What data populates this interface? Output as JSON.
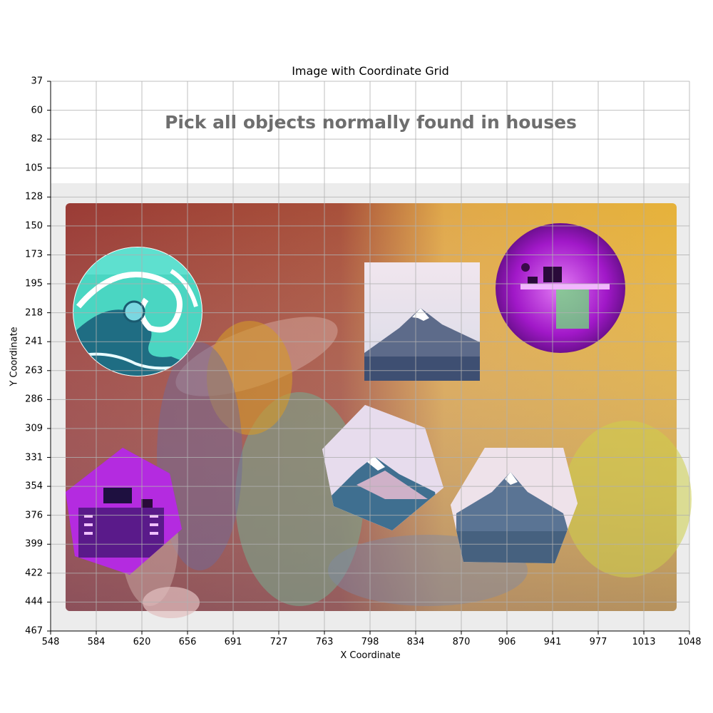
{
  "plot": {
    "title": "Image with Coordinate Grid",
    "x_label": "X Coordinate",
    "y_label": "Y Coordinate",
    "x_ticks": [
      "548",
      "584",
      "620",
      "656",
      "691",
      "727",
      "763",
      "798",
      "834",
      "870",
      "906",
      "941",
      "977",
      "1013",
      "1048"
    ],
    "y_ticks": [
      "37",
      "60",
      "82",
      "105",
      "128",
      "150",
      "173",
      "195",
      "218",
      "241",
      "263",
      "286",
      "309",
      "331",
      "354",
      "376",
      "399",
      "422",
      "444",
      "467"
    ]
  },
  "captcha": {
    "prompt": "Pick all objects normally found in houses",
    "tiles": [
      {
        "id": "wave-circle",
        "icon": "ocean-wave-icon",
        "shape": "circle"
      },
      {
        "id": "mountain-square",
        "icon": "mountain-icon",
        "shape": "square"
      },
      {
        "id": "desk-circle",
        "icon": "desk-icon",
        "shape": "circle"
      },
      {
        "id": "cabinet-hexagon",
        "icon": "cabinet-icon",
        "shape": "hexagon"
      },
      {
        "id": "mountain-hexagon",
        "icon": "mountain-icon",
        "shape": "hexagon"
      },
      {
        "id": "mountain-pentagon",
        "icon": "mountain-icon",
        "shape": "pentagon"
      }
    ]
  },
  "colors": {
    "grid": "#b0b0b0",
    "prompt_text": "#6e6e6e",
    "panel_border": "#ececec",
    "desk_glow": "#c026e6",
    "wave_teal": "#2bb3a6"
  }
}
